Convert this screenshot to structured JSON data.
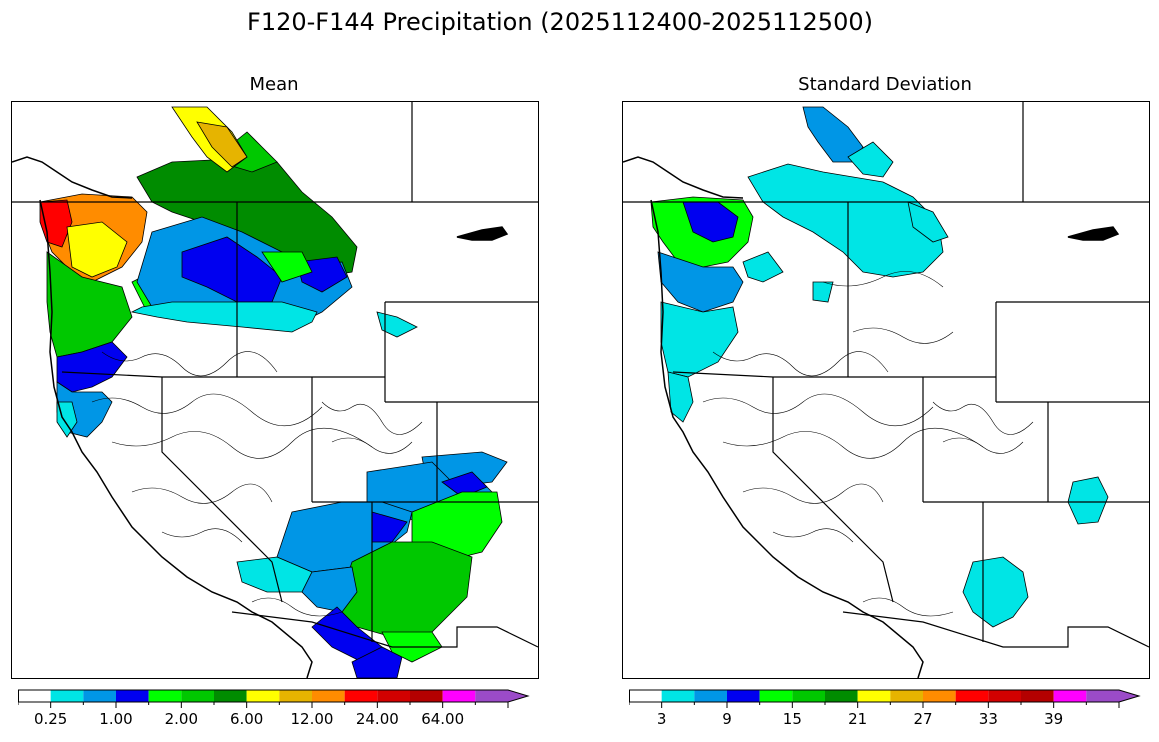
{
  "figure": {
    "title": "F120-F144 Precipitation (2025112400-2025112500)"
  },
  "panels": [
    {
      "title": "Mean",
      "colorbar": {
        "colors": [
          "#ffffff",
          "#00e5e5",
          "#0096e6",
          "#0000f0",
          "#00ff00",
          "#00c800",
          "#008c00",
          "#ffff00",
          "#e6b400",
          "#ff8c00",
          "#ff0000",
          "#d20000",
          "#b40000",
          "#ff00ff",
          "#9b4bc8"
        ],
        "tick_labels": [
          "0.25",
          "1.00",
          "2.00",
          "6.00",
          "12.00",
          "24.00",
          "64.00"
        ],
        "extend": "max"
      }
    },
    {
      "title": "Standard Deviation",
      "colorbar": {
        "colors": [
          "#ffffff",
          "#00e5e5",
          "#0096e6",
          "#0000f0",
          "#00ff00",
          "#00c800",
          "#008c00",
          "#ffff00",
          "#e6b400",
          "#ff8c00",
          "#ff0000",
          "#d20000",
          "#b40000",
          "#ff00ff",
          "#9b4bc8"
        ],
        "tick_labels": [
          "3",
          "9",
          "15",
          "21",
          "27",
          "33",
          "39"
        ],
        "extend": "max"
      }
    }
  ]
}
